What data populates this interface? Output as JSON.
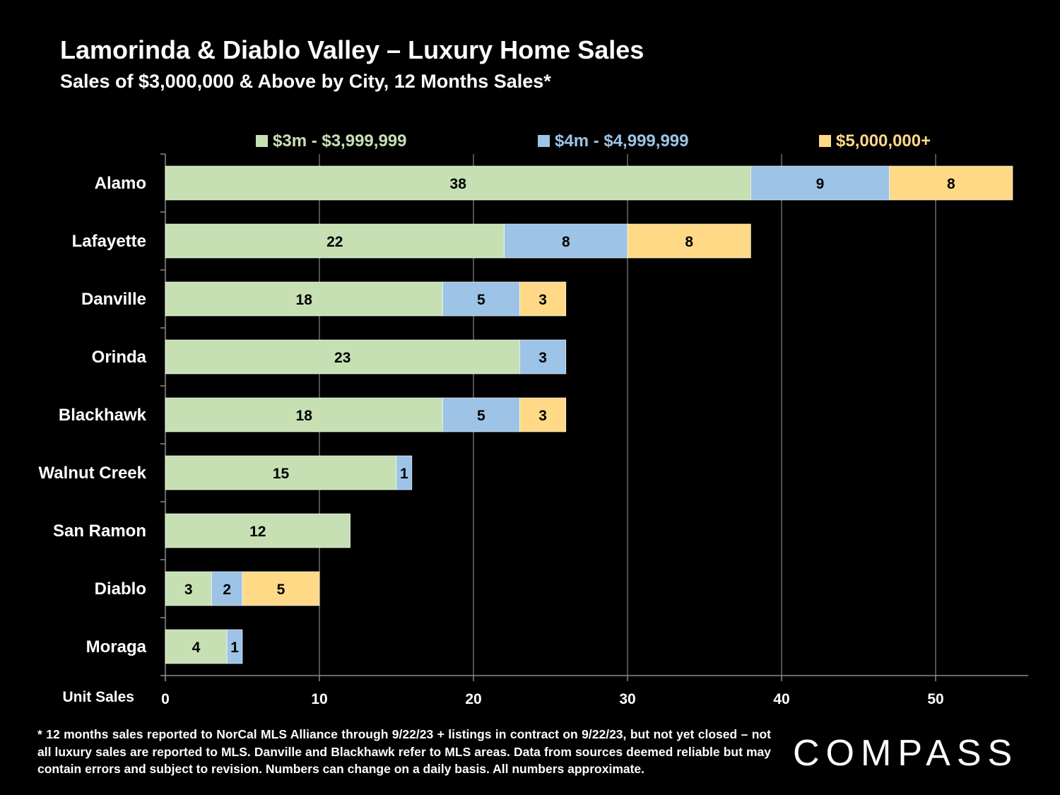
{
  "title": "Lamorinda & Diablo Valley – Luxury Home Sales",
  "subtitle": "Sales of $3,000,000 & Above by City, 12 Months Sales*",
  "chart_data": {
    "type": "bar",
    "orientation": "horizontal",
    "stacked": true,
    "categories": [
      "Alamo",
      "Lafayette",
      "Danville",
      "Orinda",
      "Blackhawk",
      "Walnut Creek",
      "San Ramon",
      "Diablo",
      "Moraga"
    ],
    "series": [
      {
        "name": "$3m - $3,999,999",
        "color": "#c6e0b4",
        "label_color": "#c6e0b4",
        "values": [
          38,
          22,
          18,
          23,
          18,
          15,
          12,
          3,
          4
        ]
      },
      {
        "name": "$4m - $4,999,999",
        "color": "#9dc3e6",
        "label_color": "#9dc3e6",
        "values": [
          9,
          8,
          5,
          3,
          5,
          1,
          0,
          2,
          1
        ]
      },
      {
        "name": "$5,000,000+",
        "color": "#ffd986",
        "label_color": "#ffd986",
        "values": [
          8,
          8,
          3,
          0,
          3,
          0,
          0,
          5,
          0
        ]
      }
    ],
    "xlabel": "Unit Sales",
    "xlim": [
      0,
      56
    ],
    "xticks": [
      0,
      10,
      20,
      30,
      40,
      50
    ],
    "grid": "vertical",
    "legend": "top",
    "data_labels": true
  },
  "footnote": "* 12 months sales reported to NorCal MLS Alliance through 9/22/23 + listings in contract on 9/22/23, but not yet closed – not all luxury sales are reported to MLS. Danville and Blackhawk refer to MLS areas. Data from sources deemed reliable but may contain errors and subject to revision. Numbers can change on a daily basis. All numbers approximate.",
  "logo": "COMPASS"
}
